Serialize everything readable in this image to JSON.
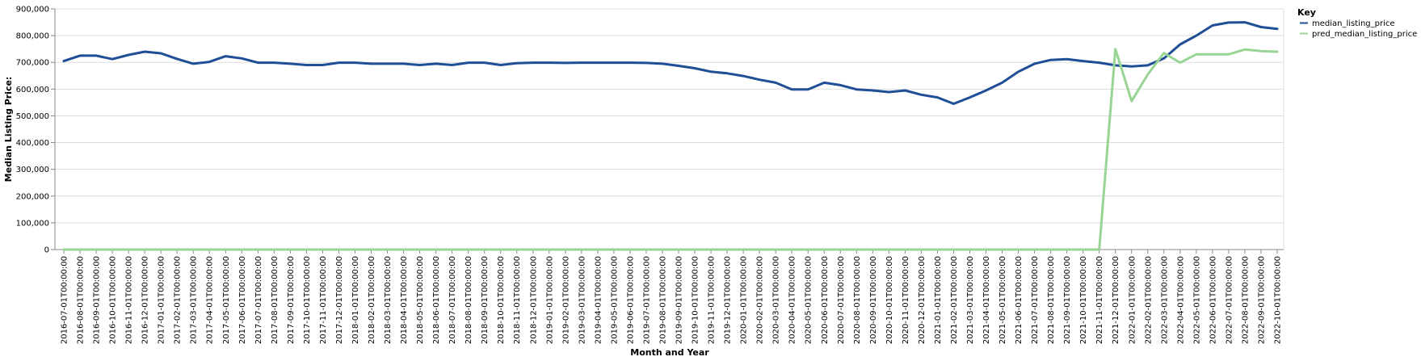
{
  "chart_data": {
    "type": "line",
    "title": "",
    "xlabel": "Month and Year",
    "ylabel": "Median Listing Price:",
    "ylim": [
      0,
      900000
    ],
    "yticks": [
      "0",
      "100,000",
      "200,000",
      "300,000",
      "400,000",
      "500,000",
      "600,000",
      "700,000",
      "800,000",
      "900,000"
    ],
    "ytick_values": [
      0,
      100000,
      200000,
      300000,
      400000,
      500000,
      600000,
      700000,
      800000,
      900000
    ],
    "grid": true,
    "legend": {
      "title": "Key",
      "placement": "top-right"
    },
    "x": [
      "2016-07-01T00:00:00",
      "2016-08-01T00:00:00",
      "2016-09-01T00:00:00",
      "2016-10-01T00:00:00",
      "2016-11-01T00:00:00",
      "2016-12-01T00:00:00",
      "2017-01-01T00:00:00",
      "2017-02-01T00:00:00",
      "2017-03-01T00:00:00",
      "2017-04-01T00:00:00",
      "2017-05-01T00:00:00",
      "2017-06-01T00:00:00",
      "2017-07-01T00:00:00",
      "2017-08-01T00:00:00",
      "2017-09-01T00:00:00",
      "2017-10-01T00:00:00",
      "2017-11-01T00:00:00",
      "2017-12-01T00:00:00",
      "2018-01-01T00:00:00",
      "2018-02-01T00:00:00",
      "2018-03-01T00:00:00",
      "2018-04-01T00:00:00",
      "2018-05-01T00:00:00",
      "2018-06-01T00:00:00",
      "2018-07-01T00:00:00",
      "2018-08-01T00:00:00",
      "2018-09-01T00:00:00",
      "2018-10-01T00:00:00",
      "2018-11-01T00:00:00",
      "2018-12-01T00:00:00",
      "2019-01-01T00:00:00",
      "2019-02-01T00:00:00",
      "2019-03-01T00:00:00",
      "2019-04-01T00:00:00",
      "2019-05-01T00:00:00",
      "2019-06-01T00:00:00",
      "2019-07-01T00:00:00",
      "2019-08-01T00:00:00",
      "2019-09-01T00:00:00",
      "2019-10-01T00:00:00",
      "2019-11-01T00:00:00",
      "2019-12-01T00:00:00",
      "2020-01-01T00:00:00",
      "2020-02-01T00:00:00",
      "2020-03-01T00:00:00",
      "2020-04-01T00:00:00",
      "2020-05-01T00:00:00",
      "2020-06-01T00:00:00",
      "2020-07-01T00:00:00",
      "2020-08-01T00:00:00",
      "2020-09-01T00:00:00",
      "2020-10-01T00:00:00",
      "2020-11-01T00:00:00",
      "2020-12-01T00:00:00",
      "2021-01-01T00:00:00",
      "2021-02-01T00:00:00",
      "2021-03-01T00:00:00",
      "2021-04-01T00:00:00",
      "2021-05-01T00:00:00",
      "2021-06-01T00:00:00",
      "2021-07-01T00:00:00",
      "2021-08-01T00:00:00",
      "2021-09-01T00:00:00",
      "2021-10-01T00:00:00",
      "2021-11-01T00:00:00",
      "2021-12-01T00:00:00",
      "2022-01-01T00:00:00",
      "2022-02-01T00:00:00",
      "2022-03-01T00:00:00",
      "2022-04-01T00:00:00",
      "2022-05-01T00:00:00",
      "2022-06-01T00:00:00",
      "2022-07-01T00:00:00",
      "2022-08-01T00:00:00",
      "2022-09-01T00:00:00",
      "2022-10-01T00:00:00"
    ],
    "series": [
      {
        "name": "median_listing_price",
        "color": "#1f4e96",
        "values": [
          705000,
          725000,
          725000,
          712000,
          728000,
          740000,
          734000,
          713000,
          695000,
          702000,
          723000,
          715000,
          699000,
          699000,
          695000,
          690000,
          690000,
          699000,
          699000,
          695000,
          695000,
          695000,
          690000,
          695000,
          690000,
          699000,
          699000,
          690000,
          697000,
          699000,
          699000,
          698000,
          699000,
          699000,
          699000,
          699000,
          698000,
          695000,
          687000,
          678000,
          665000,
          659000,
          649000,
          635000,
          624000,
          599000,
          599000,
          624000,
          615000,
          599000,
          595000,
          589000,
          595000,
          579000,
          569000,
          545000,
          569000,
          595000,
          624000,
          665000,
          695000,
          709000,
          712000,
          705000,
          699000,
          689000,
          685000,
          689000,
          715000,
          767000,
          800000,
          838000,
          849000,
          850000,
          832000,
          825000
        ]
      },
      {
        "name": "pred_median_listing_price",
        "color": "#98d594",
        "values": [
          0,
          0,
          0,
          0,
          0,
          0,
          0,
          0,
          0,
          0,
          0,
          0,
          0,
          0,
          0,
          0,
          0,
          0,
          0,
          0,
          0,
          0,
          0,
          0,
          0,
          0,
          0,
          0,
          0,
          0,
          0,
          0,
          0,
          0,
          0,
          0,
          0,
          0,
          0,
          0,
          0,
          0,
          0,
          0,
          0,
          0,
          0,
          0,
          0,
          0,
          0,
          0,
          0,
          0,
          0,
          0,
          0,
          0,
          0,
          0,
          0,
          0,
          0,
          0,
          0,
          750000,
          555000,
          655000,
          735000,
          699000,
          730000,
          730000,
          730000,
          748000,
          742000,
          740000
        ]
      }
    ]
  }
}
